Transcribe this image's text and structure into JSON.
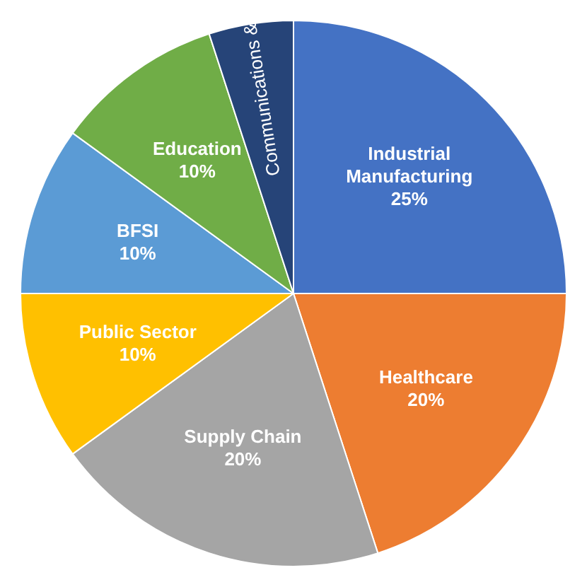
{
  "chart_data": {
    "type": "pie",
    "categories": [
      "Industrial Manufacturing",
      "Healthcare",
      "Supply Chain",
      "Public Sector",
      "BFSI",
      "Education",
      "Communications &"
    ],
    "values": [
      25,
      20,
      20,
      10,
      10,
      10,
      5
    ],
    "colors": [
      "#4472c4",
      "#ed7d31",
      "#a5a5a5",
      "#ffc000",
      "#5b9bd5",
      "#70ad47",
      "#264478"
    ],
    "value_labels": [
      "25%",
      "20%",
      "20%",
      "10%",
      "10%",
      "10%",
      null
    ],
    "legend": false
  }
}
